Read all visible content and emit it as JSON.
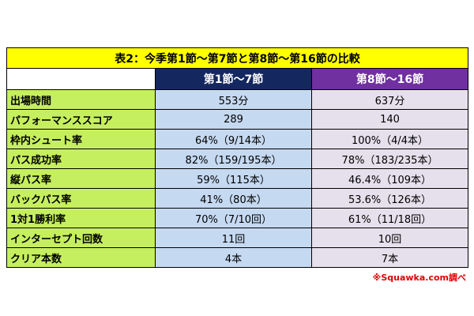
{
  "table": {
    "title": "表2：今季第1節～第7節と第8節～第16節の比較",
    "header": [
      "第1節～7節",
      "第8節～16節"
    ],
    "rows": [
      [
        "出場時間",
        "553分",
        "637分"
      ],
      [
        "パフォーマンススコア",
        "289",
        "140"
      ],
      [
        "枠内シュート率",
        "64%（9/14本）",
        "100%（4/4本）"
      ],
      [
        "パス成功率",
        "82%（159/195本）",
        "78%（183/235本）"
      ],
      [
        "縦パス率",
        "59%（115本）",
        "46.4%（109本）"
      ],
      [
        "バックパス率",
        "41%（80本）",
        "53.6%（126本）"
      ],
      [
        "1対1勝利率",
        "70%（7/10回）",
        "61%（11/18回）"
      ],
      [
        "インターセプト回数",
        "11回",
        "10回"
      ],
      [
        "クリア本数",
        "4本",
        "7本"
      ]
    ]
  },
  "note": "※Squawka.com調べ"
}
